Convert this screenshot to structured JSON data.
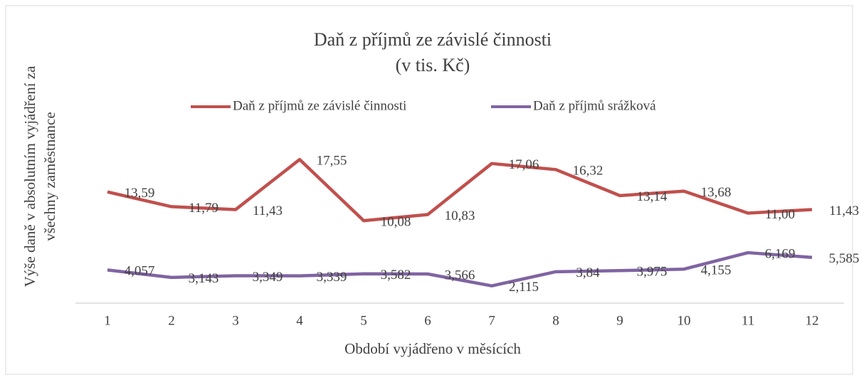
{
  "chart_data": {
    "type": "line",
    "title": "Daň z příjmů ze závislé činnosti",
    "subtitle": "(v tis. Kč)",
    "xlabel": "Období vyjádřeno v měsících",
    "ylabel": [
      "Výše daně v absolutním vyjádření za",
      "všechny zaměstnance"
    ],
    "categories": [
      "1",
      "2",
      "3",
      "4",
      "5",
      "6",
      "7",
      "8",
      "9",
      "10",
      "11",
      "12"
    ],
    "ylim": [
      0,
      20
    ],
    "legend": "top",
    "series": [
      {
        "name": "Daň z příjmů ze závislé činnosti",
        "color": "#c0504d",
        "values": [
          13.59,
          11.79,
          11.43,
          17.55,
          10.08,
          10.83,
          17.06,
          16.32,
          13.14,
          13.68,
          11.0,
          11.43
        ],
        "value_labels": [
          "13,59",
          "11,79",
          "11,43",
          "17,55",
          "10,08",
          "10,83",
          "17,06",
          "16,32",
          "13,14",
          "13,68",
          "11,00",
          "11,43"
        ]
      },
      {
        "name": "Daň z příjmů srážková",
        "color": "#8064a2",
        "values": [
          4.057,
          3.143,
          3.349,
          3.339,
          3.582,
          3.566,
          2.115,
          3.84,
          3.975,
          4.155,
          6.169,
          5.585
        ],
        "value_labels": [
          "4,057",
          "3,143",
          "3,349",
          "3,339",
          "3,582",
          "3,566",
          "2,115",
          "3,84",
          "3,975",
          "4,155",
          "6,169",
          "5,585"
        ]
      }
    ]
  }
}
